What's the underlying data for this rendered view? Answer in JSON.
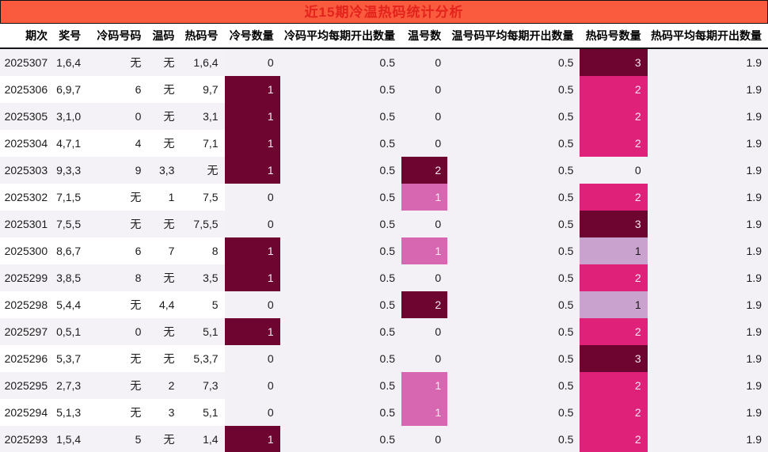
{
  "title": "近15期冷温热码统计分析",
  "columns": [
    "期次",
    "奖号",
    "冷码号码",
    "温码",
    "热码号",
    "冷号数量",
    "冷码平均每期开出数量",
    "温号数",
    "温号码平均每期开出数量",
    "热码号数量",
    "热码平均每期开出数量"
  ],
  "rows": [
    [
      "2025307",
      "1,6,4",
      "无",
      "无",
      "1,6,4",
      "0",
      "0.5",
      "0",
      "0.5",
      "3",
      "1.9"
    ],
    [
      "2025306",
      "6,9,7",
      "6",
      "无",
      "9,7",
      "1",
      "0.5",
      "0",
      "0.5",
      "2",
      "1.9"
    ],
    [
      "2025305",
      "3,1,0",
      "0",
      "无",
      "3,1",
      "1",
      "0.5",
      "0",
      "0.5",
      "2",
      "1.9"
    ],
    [
      "2025304",
      "4,7,1",
      "4",
      "无",
      "7,1",
      "1",
      "0.5",
      "0",
      "0.5",
      "2",
      "1.9"
    ],
    [
      "2025303",
      "9,3,3",
      "9",
      "3,3",
      "无",
      "1",
      "0.5",
      "2",
      "0.5",
      "0",
      "1.9"
    ],
    [
      "2025302",
      "7,1,5",
      "无",
      "1",
      "7,5",
      "0",
      "0.5",
      "1",
      "0.5",
      "2",
      "1.9"
    ],
    [
      "2025301",
      "7,5,5",
      "无",
      "无",
      "7,5,5",
      "0",
      "0.5",
      "0",
      "0.5",
      "3",
      "1.9"
    ],
    [
      "2025300",
      "8,6,7",
      "6",
      "7",
      "8",
      "1",
      "0.5",
      "1",
      "0.5",
      "1",
      "1.9"
    ],
    [
      "2025299",
      "3,8,5",
      "8",
      "无",
      "3,5",
      "1",
      "0.5",
      "0",
      "0.5",
      "2",
      "1.9"
    ],
    [
      "2025298",
      "5,4,4",
      "无",
      "4,4",
      "5",
      "0",
      "0.5",
      "2",
      "0.5",
      "1",
      "1.9"
    ],
    [
      "2025297",
      "0,5,1",
      "0",
      "无",
      "5,1",
      "1",
      "0.5",
      "0",
      "0.5",
      "2",
      "1.9"
    ],
    [
      "2025296",
      "5,3,7",
      "无",
      "无",
      "5,3,7",
      "0",
      "0.5",
      "0",
      "0.5",
      "3",
      "1.9"
    ],
    [
      "2025295",
      "2,7,3",
      "无",
      "2",
      "7,3",
      "0",
      "0.5",
      "1",
      "0.5",
      "2",
      "1.9"
    ],
    [
      "2025294",
      "5,1,3",
      "无",
      "3",
      "5,1",
      "0",
      "0.5",
      "1",
      "0.5",
      "2",
      "1.9"
    ],
    [
      "2025293",
      "1,5,4",
      "5",
      "无",
      "1,4",
      "1",
      "0.5",
      "0",
      "0.5",
      "2",
      "1.9"
    ]
  ],
  "highlight_rules": {
    "5": {
      "1": "hl-dark"
    },
    "7": {
      "1": "hl-mid",
      "2": "hl-dark"
    },
    "9": {
      "1": "hl-light",
      "2": "hl-bright",
      "3": "hl-dark"
    }
  },
  "colors": {
    "title_bg": "#fa5a3e",
    "title_text": "#e3231c",
    "heat_dark_maroon": "#6e0430",
    "heat_bright_pink": "#e02179",
    "heat_medium_pink": "#d867b1",
    "heat_light_lavender": "#c9a2cd",
    "alt_row_bg": "#f4f2f7",
    "right_columns_bg": "#f3f1f6"
  },
  "chart_data": {
    "type": "table",
    "title": "近15期冷温热码统计分析",
    "columns": [
      "期次",
      "奖号",
      "冷码号码",
      "温码",
      "热码号",
      "冷号数量",
      "冷码平均每期开出数量",
      "温号数",
      "温号码平均每期开出数量",
      "热码号数量",
      "热码平均每期开出数量"
    ],
    "rows": [
      [
        "2025307",
        "1,6,4",
        "无",
        "无",
        "1,6,4",
        0,
        0.5,
        0,
        0.5,
        3,
        1.9
      ],
      [
        "2025306",
        "6,9,7",
        "6",
        "无",
        "9,7",
        1,
        0.5,
        0,
        0.5,
        2,
        1.9
      ],
      [
        "2025305",
        "3,1,0",
        "0",
        "无",
        "3,1",
        1,
        0.5,
        0,
        0.5,
        2,
        1.9
      ],
      [
        "2025304",
        "4,7,1",
        "4",
        "无",
        "7,1",
        1,
        0.5,
        0,
        0.5,
        2,
        1.9
      ],
      [
        "2025303",
        "9,3,3",
        "9",
        "3,3",
        "无",
        1,
        0.5,
        2,
        0.5,
        0,
        1.9
      ],
      [
        "2025302",
        "7,1,5",
        "无",
        "1",
        "7,5",
        0,
        0.5,
        1,
        0.5,
        2,
        1.9
      ],
      [
        "2025301",
        "7,5,5",
        "无",
        "无",
        "7,5,5",
        0,
        0.5,
        0,
        0.5,
        3,
        1.9
      ],
      [
        "2025300",
        "8,6,7",
        "6",
        "7",
        "8",
        1,
        0.5,
        1,
        0.5,
        1,
        1.9
      ],
      [
        "2025299",
        "3,8,5",
        "8",
        "无",
        "3,5",
        1,
        0.5,
        0,
        0.5,
        2,
        1.9
      ],
      [
        "2025298",
        "5,4,4",
        "无",
        "4,4",
        "5",
        0,
        0.5,
        2,
        0.5,
        1,
        1.9
      ],
      [
        "2025297",
        "0,5,1",
        "0",
        "无",
        "5,1",
        1,
        0.5,
        0,
        0.5,
        2,
        1.9
      ],
      [
        "2025296",
        "5,3,7",
        "无",
        "无",
        "5,3,7",
        0,
        0.5,
        0,
        0.5,
        3,
        1.9
      ],
      [
        "2025295",
        "2,7,3",
        "无",
        "2",
        "7,3",
        0,
        0.5,
        1,
        0.5,
        2,
        1.9
      ],
      [
        "2025294",
        "5,1,3",
        "无",
        "3",
        "5,1",
        0,
        0.5,
        1,
        0.5,
        2,
        1.9
      ],
      [
        "2025293",
        "1,5,4",
        "5",
        "无",
        "1,4",
        1,
        0.5,
        0,
        0.5,
        2,
        1.9
      ]
    ],
    "heatmap_legend": "冷号数量/温号数/热码号数量 cells are shaded by count: 1→light or medium pink, 2→bright pink or dark maroon, 3→dark maroon"
  }
}
